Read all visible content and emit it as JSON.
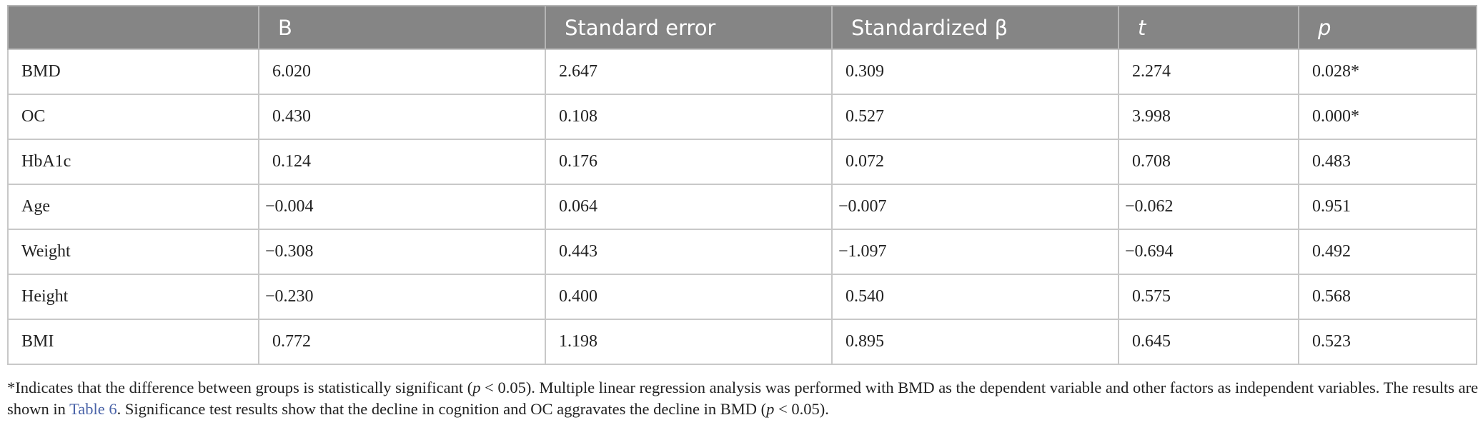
{
  "table": {
    "header": [
      "B",
      "Standard error",
      "Standardized β",
      "t",
      "p"
    ],
    "rows": [
      [
        "BMD",
        "6.020",
        "2.647",
        "0.309",
        "2.274",
        "0.028*"
      ],
      [
        "OC",
        "0.430",
        "0.108",
        "0.527",
        "3.998",
        "0.000*"
      ],
      [
        "HbA1c",
        "0.124",
        "0.176",
        "0.072",
        "0.708",
        "0.483"
      ],
      [
        "Age",
        "−0.004",
        "0.064",
        "−0.007",
        "−0.062",
        "0.951"
      ],
      [
        "Weight",
        "−0.308",
        "0.443",
        "−1.097",
        "−0.694",
        "0.492"
      ],
      [
        "Height",
        "−0.230",
        "0.400",
        "0.540",
        "0.575",
        "0.568"
      ],
      [
        "BMI",
        "0.772",
        "1.198",
        "0.895",
        "0.645",
        "0.523"
      ]
    ]
  },
  "footnote": [
    "*Indicates that the difference between groups is statistically significant (",
    "p",
    " < 0.05). Multiple linear regression analysis was performed with BMD as the dependent variable and other factors as independent variables. The results are shown in ",
    "Table 6",
    ". Significance test results show that the decline in cognition and OC aggravates the decline in BMD (",
    "p",
    " < 0.05)."
  ]
}
